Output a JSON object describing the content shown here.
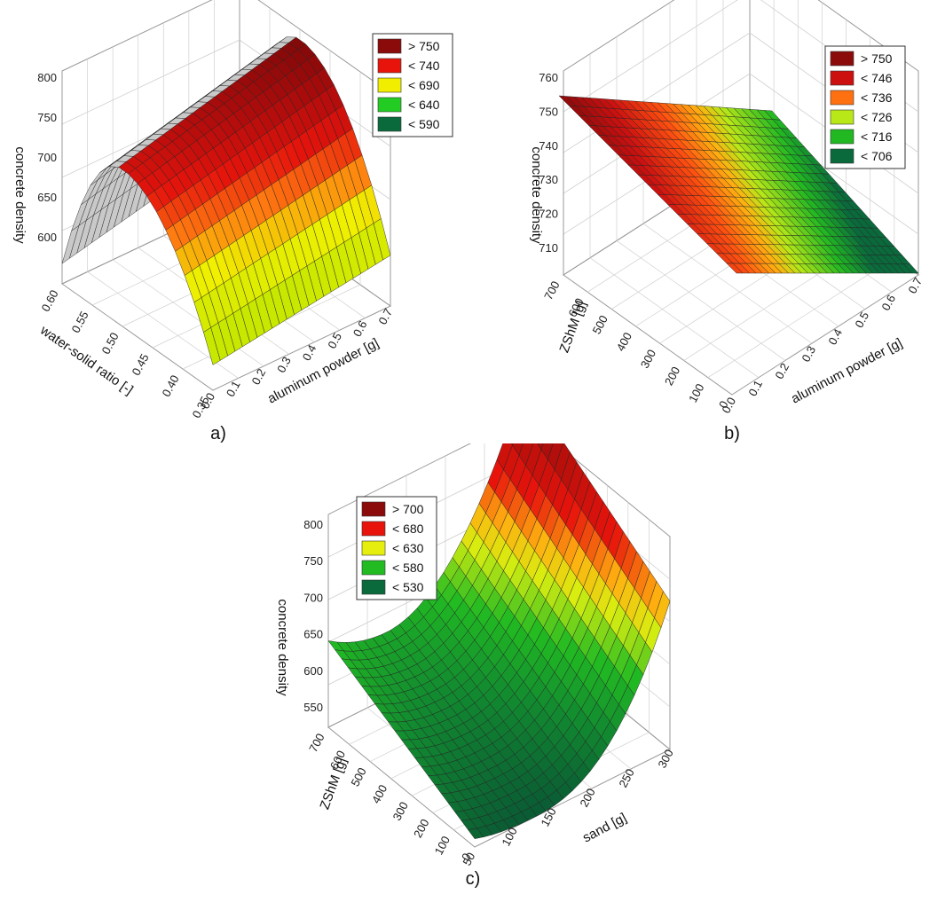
{
  "chart_data": [
    {
      "type": "surface3d",
      "caption": "a)",
      "zlabel": "concrete density",
      "xlabel": "aluminum powder [g]",
      "ylabel": "water-solid ratio [-]",
      "x_ticks": [
        "0.0",
        "0.1",
        "0.2",
        "0.3",
        "0.4",
        "0.5",
        "0.6",
        "0.7"
      ],
      "y_ticks": [
        "0.35",
        "0.40",
        "0.45",
        "0.50",
        "0.55",
        "0.60"
      ],
      "z_ticks": [
        "600",
        "650",
        "700",
        "750",
        "800"
      ],
      "xlim": [
        0,
        0.7
      ],
      "ylim": [
        0.35,
        0.6
      ],
      "zlim": [
        590,
        800
      ],
      "legend": [
        {
          "label": "> 750",
          "color": "#8b0a0a"
        },
        {
          "label": "< 740",
          "color": "#e8140c"
        },
        {
          "label": "< 690",
          "color": "#f2ee00"
        },
        {
          "label": "< 640",
          "color": "#22cc22"
        },
        {
          "label": "< 590",
          "color": "#0a6a3c"
        }
      ],
      "surface_samples": [
        {
          "x": 0.0,
          "y": 0.35,
          "z": 615
        },
        {
          "x": 0.7,
          "y": 0.35,
          "z": 640
        },
        {
          "x": 0.0,
          "y": 0.5,
          "z": 745
        },
        {
          "x": 0.7,
          "y": 0.5,
          "z": 790
        },
        {
          "x": 0.0,
          "y": 0.6,
          "z": 610
        },
        {
          "x": 0.7,
          "y": 0.6,
          "z": 650
        }
      ]
    },
    {
      "type": "surface3d",
      "caption": "b)",
      "zlabel": "concrete density",
      "xlabel": "aluminum powder [g]",
      "ylabel": "ZShM [g]",
      "x_ticks": [
        "0.0",
        "0.1",
        "0.2",
        "0.3",
        "0.4",
        "0.5",
        "0.6",
        "0.7"
      ],
      "y_ticks": [
        "0",
        "100",
        "200",
        "300",
        "400",
        "500",
        "600",
        "700"
      ],
      "z_ticks": [
        "710",
        "720",
        "730",
        "740",
        "750",
        "760"
      ],
      "xlim": [
        0,
        0.7
      ],
      "ylim": [
        0,
        700
      ],
      "zlim": [
        704,
        760
      ],
      "legend": [
        {
          "label": "> 750",
          "color": "#8b0a0a"
        },
        {
          "label": "< 746",
          "color": "#cc1010"
        },
        {
          "label": "< 736",
          "color": "#ff7010"
        },
        {
          "label": "< 726",
          "color": "#b8e818"
        },
        {
          "label": "< 716",
          "color": "#22b822"
        },
        {
          "label": "< 706",
          "color": "#0a6a3c"
        }
      ],
      "surface_samples": [
        {
          "x": 0.0,
          "y": 700,
          "z": 754
        },
        {
          "x": 0.7,
          "y": 700,
          "z": 748
        },
        {
          "x": 0.0,
          "y": 0,
          "z": 715
        },
        {
          "x": 0.7,
          "y": 0,
          "z": 705
        }
      ]
    },
    {
      "type": "surface3d",
      "caption": "c)",
      "zlabel": "concrete density",
      "xlabel": "sand [g]",
      "ylabel": "ZShM [g]",
      "x_ticks": [
        "50",
        "100",
        "150",
        "200",
        "250",
        "300"
      ],
      "y_ticks": [
        "0",
        "100",
        "200",
        "300",
        "400",
        "500",
        "600",
        "700"
      ],
      "z_ticks": [
        "550",
        "600",
        "650",
        "700",
        "750",
        "800"
      ],
      "xlim": [
        50,
        300
      ],
      "ylim": [
        0,
        700
      ],
      "zlim": [
        520,
        800
      ],
      "legend": [
        {
          "label": "> 700",
          "color": "#8b0a0a"
        },
        {
          "label": "< 680",
          "color": "#e8140c"
        },
        {
          "label": "< 630",
          "color": "#e6ee10"
        },
        {
          "label": "< 580",
          "color": "#22bb22"
        },
        {
          "label": "< 530",
          "color": "#0a6a3c"
        }
      ],
      "surface_samples": [
        {
          "x": 50,
          "y": 700,
          "z": 615
        },
        {
          "x": 50,
          "y": 0,
          "z": 530
        },
        {
          "x": 300,
          "y": 700,
          "z": 815
        },
        {
          "x": 300,
          "y": 0,
          "z": 700
        }
      ]
    }
  ]
}
